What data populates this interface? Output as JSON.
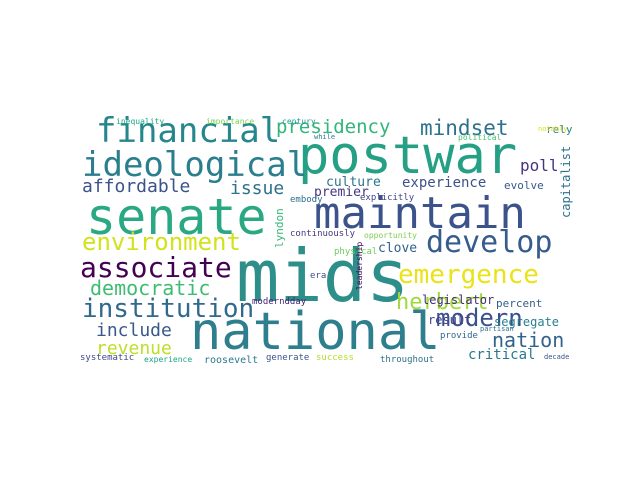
{
  "words": [
    {
      "text": "mids",
      "color": "#2e8f8a"
    },
    {
      "text": "national",
      "color": "#2e7e8e"
    },
    {
      "text": "postwar",
      "color": "#25a085"
    },
    {
      "text": "senate",
      "color": "#2aa883"
    },
    {
      "text": "maintain",
      "color": "#3b528b"
    },
    {
      "text": "financial",
      "color": "#26868e"
    },
    {
      "text": "ideological",
      "color": "#2a7e8e"
    },
    {
      "text": "develop",
      "color": "#365c8d"
    },
    {
      "text": "emergence",
      "color": "#e8e419"
    },
    {
      "text": "associate",
      "color": "#440154"
    },
    {
      "text": "environment",
      "color": "#d2e21b"
    },
    {
      "text": "institution",
      "color": "#31688e"
    },
    {
      "text": "modern",
      "color": "#3b518b"
    },
    {
      "text": "herbert",
      "color": "#9fda3a"
    },
    {
      "text": "democratic",
      "color": "#3fbc73"
    },
    {
      "text": "nation",
      "color": "#33638d"
    },
    {
      "text": "presidency",
      "color": "#31b57b"
    },
    {
      "text": "mindset",
      "color": "#2c728e"
    },
    {
      "text": "affordable",
      "color": "#3b528b"
    },
    {
      "text": "issue",
      "color": "#2d718e"
    },
    {
      "text": "include",
      "color": "#38598c"
    },
    {
      "text": "revenue",
      "color": "#bddf26"
    },
    {
      "text": "poll",
      "color": "#46337f"
    },
    {
      "text": "experience",
      "color": "#3b528b"
    },
    {
      "text": "culture",
      "color": "#2a768e"
    },
    {
      "text": "evolve",
      "color": "#38588c"
    },
    {
      "text": "premier",
      "color": "#453781"
    },
    {
      "text": "segregate",
      "color": "#27808e"
    },
    {
      "text": "legislator",
      "color": "#472d7b"
    },
    {
      "text": "capitalist",
      "color": "#2c728e"
    },
    {
      "text": "critical",
      "color": "#2a788e"
    },
    {
      "text": "clove",
      "color": "#33628d"
    },
    {
      "text": "result",
      "color": "#424086"
    },
    {
      "text": "percent",
      "color": "#34608d"
    },
    {
      "text": "explicitly",
      "color": "#414487"
    },
    {
      "text": "continuously",
      "color": "#443983"
    },
    {
      "text": "opportunity",
      "color": "#7ad151"
    },
    {
      "text": "lyndon",
      "color": "#35b779"
    },
    {
      "text": "embody",
      "color": "#2c718e"
    },
    {
      "text": "physical",
      "color": "#6ccd5a"
    },
    {
      "text": "moderndday",
      "color": "#482475"
    },
    {
      "text": "era",
      "color": "#3e4c8a"
    },
    {
      "text": "generate",
      "color": "#3b528b"
    },
    {
      "text": "success",
      "color": "#b5de2b"
    },
    {
      "text": "throughout",
      "color": "#2c728e"
    },
    {
      "text": "provide",
      "color": "#31688e"
    },
    {
      "text": "roosevelt",
      "color": "#2a788e"
    },
    {
      "text": "systematic",
      "color": "#3e4989"
    },
    {
      "text": "experience",
      "color": "#20a386"
    },
    {
      "text": "leadership",
      "color": "#440154"
    },
    {
      "text": "century",
      "color": "#1f988b"
    },
    {
      "text": "importance",
      "color": "#7ad151"
    },
    {
      "text": "inequality",
      "color": "#22a884"
    },
    {
      "text": "rely",
      "color": "#277f8e"
    },
    {
      "text": "notably",
      "color": "#d8e219"
    },
    {
      "text": "political",
      "color": "#4ac16d"
    },
    {
      "text": "partisan",
      "color": "#2c728e"
    },
    {
      "text": "decade",
      "color": "#3b528b"
    },
    {
      "text": "while",
      "color": "#2a788e"
    }
  ]
}
